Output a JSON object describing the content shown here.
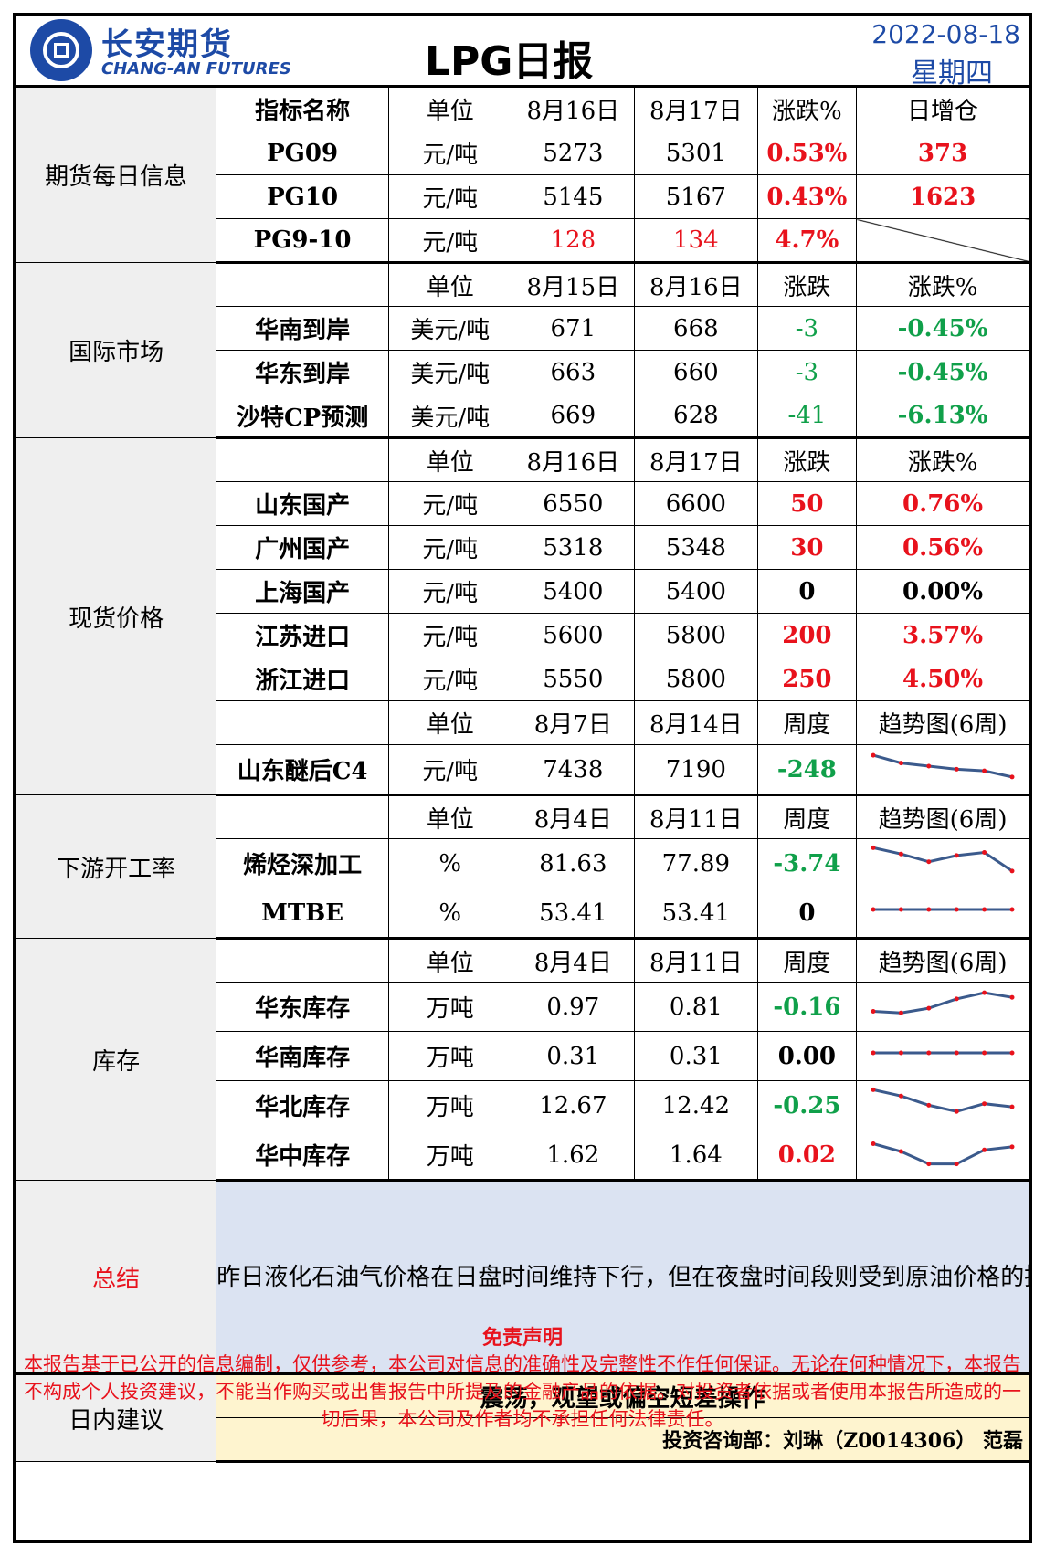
{
  "header": {
    "brand_cn": "长安期货",
    "brand_en": "CHANG-AN FUTURES",
    "title": "LPG日报",
    "date": "2022-08-18",
    "weekday": "星期四"
  },
  "sections": {
    "futures": "期货每日信息",
    "intl": "国际市场",
    "spot": "现货价格",
    "downstream": "下游开工率",
    "inventory": "库存",
    "summary": "总结",
    "advice": "日内建议"
  },
  "futures": {
    "headers": [
      "指标名称",
      "单位",
      "8月16日",
      "8月17日",
      "涨跌%",
      "日增仓"
    ],
    "rows": [
      [
        "PG09",
        "元/吨",
        "5273",
        "5301",
        "0.53%",
        "373"
      ],
      [
        "PG10",
        "元/吨",
        "5145",
        "5167",
        "0.43%",
        "1623"
      ],
      [
        "PG9-10",
        "元/吨",
        "128",
        "134",
        "4.7%",
        ""
      ]
    ]
  },
  "intl": {
    "headers": [
      "",
      "单位",
      "8月15日",
      "8月16日",
      "涨跌",
      "涨跌%"
    ],
    "rows": [
      [
        "华南到岸",
        "美元/吨",
        "671",
        "668",
        "-3",
        "-0.45%"
      ],
      [
        "华东到岸",
        "美元/吨",
        "663",
        "660",
        "-3",
        "-0.45%"
      ],
      [
        "沙特CP预测",
        "美元/吨",
        "669",
        "628",
        "-41",
        "-6.13%"
      ]
    ]
  },
  "spot": {
    "headers": [
      "",
      "单位",
      "8月16日",
      "8月17日",
      "涨跌",
      "涨跌%"
    ],
    "rows": [
      [
        "山东国产",
        "元/吨",
        "6550",
        "6600",
        "50",
        "0.76%"
      ],
      [
        "广州国产",
        "元/吨",
        "5318",
        "5348",
        "30",
        "0.56%"
      ],
      [
        "上海国产",
        "元/吨",
        "5400",
        "5400",
        "0",
        "0.00%"
      ],
      [
        "江苏进口",
        "元/吨",
        "5600",
        "5800",
        "200",
        "3.57%"
      ],
      [
        "浙江进口",
        "元/吨",
        "5550",
        "5800",
        "250",
        "4.50%"
      ]
    ],
    "c4_headers": [
      "",
      "单位",
      "8月7日",
      "8月14日",
      "周度",
      "趋势图(6周)"
    ],
    "c4_row": [
      "山东醚后C4",
      "元/吨",
      "7438",
      "7190",
      "-248"
    ]
  },
  "downstream": {
    "headers": [
      "",
      "单位",
      "8月4日",
      "8月11日",
      "周度",
      "趋势图(6周)"
    ],
    "rows": [
      [
        "烯烃深加工",
        "%",
        "81.63",
        "77.89",
        "-3.74"
      ],
      [
        "MTBE",
        "%",
        "53.41",
        "53.41",
        "0"
      ]
    ]
  },
  "inventory": {
    "headers": [
      "",
      "单位",
      "8月4日",
      "8月11日",
      "周度",
      "趋势图(6周)"
    ],
    "rows": [
      [
        "华东库存",
        "万吨",
        "0.97",
        "0.81",
        "-0.16"
      ],
      [
        "华南库存",
        "万吨",
        "0.31",
        "0.31",
        "0.00"
      ],
      [
        "华北库存",
        "万吨",
        "12.67",
        "12.42",
        "-0.25"
      ],
      [
        "华中库存",
        "万吨",
        "1.62",
        "1.64",
        "0.02"
      ]
    ]
  },
  "sparklines": {
    "c4": [
      0.85,
      0.6,
      0.5,
      0.4,
      0.35,
      0.15
    ],
    "olefin": [
      0.9,
      0.7,
      0.45,
      0.65,
      0.75,
      0.15
    ],
    "mtbe": [
      0.5,
      0.5,
      0.5,
      0.5,
      0.5,
      0.5
    ],
    "east": [
      0.25,
      0.2,
      0.35,
      0.65,
      0.85,
      0.7
    ],
    "south": [
      0.5,
      0.5,
      0.5,
      0.5,
      0.5,
      0.5
    ],
    "north": [
      0.9,
      0.7,
      0.4,
      0.2,
      0.45,
      0.35
    ],
    "central": [
      0.75,
      0.5,
      0.1,
      0.1,
      0.55,
      0.65
    ],
    "line_color": "#3b5a8c",
    "point_color": "#e8121c"
  },
  "summary_text": "昨日液化石油气价格在日盘时间维持下行，但在夜盘时间段则受到原油价格的提振有所回涨。目前看来，国内现货价格有所上行，主要受到前期进口成本上扬导致的供给偏紧的影响；而下游开工率的持续偏低以及高温影响下民用燃烧需求的弱势，导致需求仍旧难以对PG价格形成有效支撑。因此整体看来，LPG短期内基本面情况仍旧相对处于一定的弱势状态，行情大致维持此前判断单边跟随原油，呈现出偏弱震荡的走势，期间可留意月间价差结构带来的投资机会。",
  "advice_text": "震荡，观望或偏空短差操作",
  "advice_author": "投资咨询部：刘琳（Z0014306）  范磊",
  "disclaimer": {
    "title": "免责声明",
    "text": "本报告基于已公开的信息编制，仅供参考，本公司对信息的准确性及完整性不作任何保证。无论在何种情况下，本报告不构成个人投资建议，不能当作购买或出售报告中所提及的金融产品的依据。对投资者依据或者使用本报告所造成的一切后果，本公司及作者均不承担任何法律责任。"
  }
}
